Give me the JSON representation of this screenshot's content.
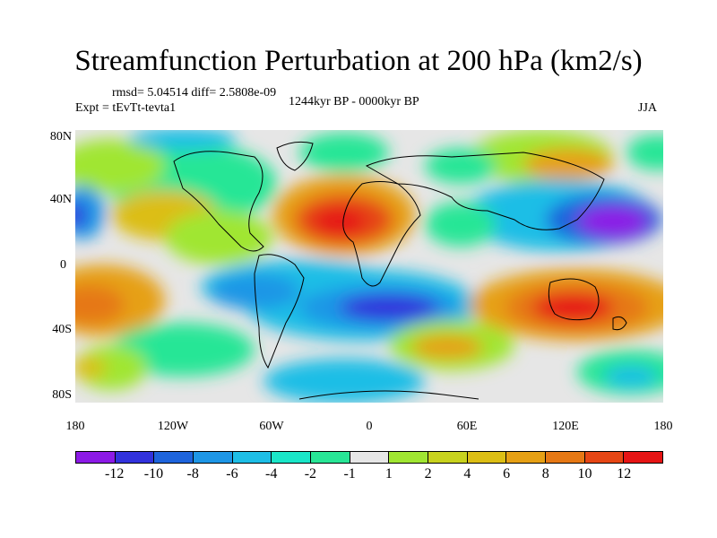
{
  "title": "Streamfunction Perturbation at 200 hPa (km2/s)",
  "stats": "rmsd= 5.04514  diff= 2.5808e-09",
  "experiment": "Expt = tEvTt-tevta1",
  "period": "1244kyr BP - 0000kyr BP",
  "season": "JJA",
  "y_axis_labels": [
    "80N",
    "40N",
    "0",
    "40S",
    "80S"
  ],
  "x_axis_labels": [
    "180",
    "120W",
    "60W",
    "0",
    "60E",
    "120E",
    "180"
  ],
  "colorbar": {
    "colors": [
      "#8c1ae6",
      "#3232dc",
      "#1e64dc",
      "#1e96e6",
      "#1ebee6",
      "#1ae6c8",
      "#28e696",
      "#e6e6e6",
      "#a0e632",
      "#c8d21e",
      "#dcbe14",
      "#e6a014",
      "#e67814",
      "#e64614",
      "#e61414"
    ],
    "labels": [
      "-12",
      "-10",
      "-8",
      "-6",
      "-4",
      "-2",
      "-1",
      "1",
      "2",
      "4",
      "6",
      "8",
      "10",
      "12"
    ]
  }
}
